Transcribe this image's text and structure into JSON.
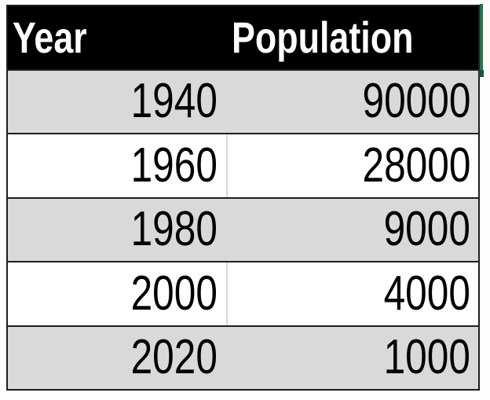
{
  "table": {
    "header": {
      "year": "Year",
      "population": "Population"
    },
    "rows": [
      {
        "year": "1940",
        "population": "90000"
      },
      {
        "year": "1960",
        "population": "28000"
      },
      {
        "year": "1980",
        "population": "9000"
      },
      {
        "year": "2000",
        "population": "4000"
      },
      {
        "year": "2020",
        "population": "1000"
      }
    ]
  },
  "colors": {
    "header_bg": "#000000",
    "header_text": "#ffffff",
    "row_alt_bg": "#d9d9d9",
    "row_bg": "#ffffff",
    "border": "#1e1e1e",
    "selection_green": "#217346"
  },
  "chart_data": {
    "type": "table",
    "columns": [
      "Year",
      "Population"
    ],
    "rows": [
      [
        1940,
        90000
      ],
      [
        1960,
        28000
      ],
      [
        1980,
        9000
      ],
      [
        2000,
        4000
      ],
      [
        2020,
        1000
      ]
    ],
    "title": "",
    "notes": "Population declines as year increases; header row black with white bold text; alternating gray/white data rows, values right-aligned"
  }
}
